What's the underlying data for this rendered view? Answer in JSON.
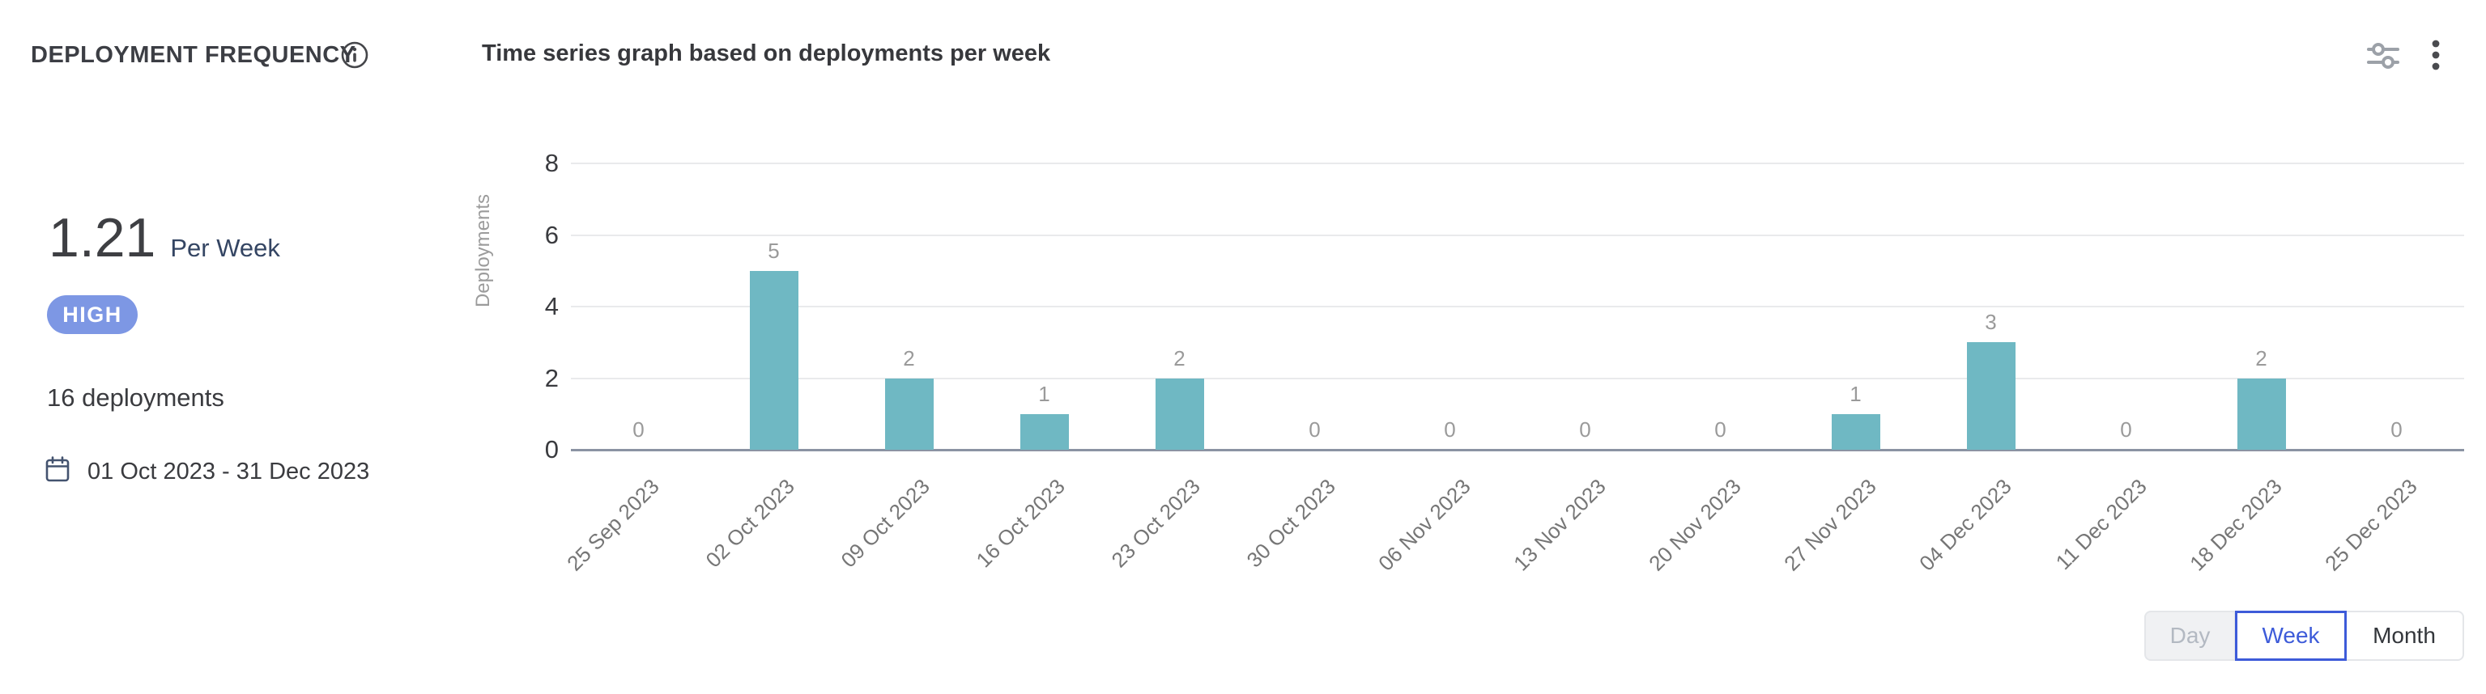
{
  "header": {
    "card_title": "DEPLOYMENT FREQUENCY",
    "chart_title": "Time series graph based on deployments per week",
    "icons": [
      "info-icon",
      "chart-settings-icon",
      "kebab-menu-icon"
    ]
  },
  "summary": {
    "metric_value": "1.21",
    "metric_unit": "Per Week",
    "badge_label": "HIGH",
    "badge_color": "#7d97e4",
    "deployment_count": "16 deployments",
    "date_range": "01 Oct 2023 - 31 Dec 2023"
  },
  "chart_data": {
    "type": "bar",
    "title": "Time series graph based on deployments per week",
    "categories": [
      "25 Sep 2023",
      "02 Oct 2023",
      "09 Oct 2023",
      "16 Oct 2023",
      "23 Oct 2023",
      "30 Oct 2023",
      "06 Nov 2023",
      "13 Nov 2023",
      "20 Nov 2023",
      "27 Nov 2023",
      "04 Dec 2023",
      "11 Dec 2023",
      "18 Dec 2023",
      "25 Dec 2023"
    ],
    "values": [
      0,
      5,
      2,
      1,
      2,
      0,
      0,
      0,
      0,
      1,
      3,
      0,
      2,
      0
    ],
    "xlabel": "",
    "ylabel": "Deployments",
    "ylim": [
      0,
      8
    ],
    "yticks": [
      0,
      2,
      4,
      6,
      8
    ],
    "grid": true,
    "bar_color": "#6fb8c3",
    "data_labels": true,
    "legend": "none"
  },
  "period_toggle": {
    "options": [
      {
        "label": "Day",
        "state": "disabled"
      },
      {
        "label": "Week",
        "state": "selected"
      },
      {
        "label": "Month",
        "state": "normal"
      }
    ]
  },
  "colors": {
    "accent_blue": "#3d5bd9",
    "badge_blue": "#7d97e4",
    "bar_teal": "#6fb8c3",
    "axis_line": "#8b93a3",
    "gridline": "#e9eaec",
    "metric_unit_navy": "#344563"
  }
}
